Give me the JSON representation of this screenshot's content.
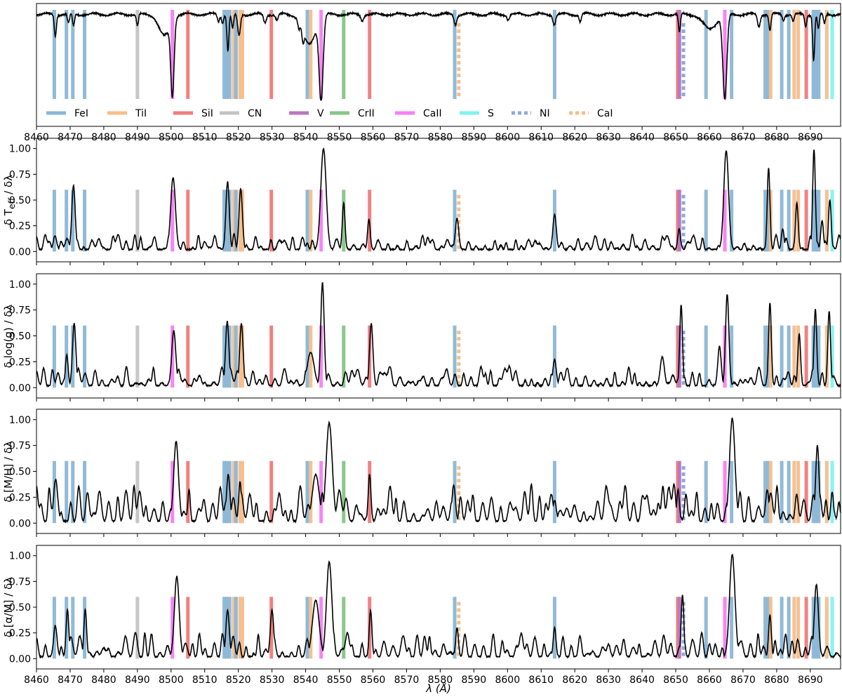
{
  "figure": {
    "xlabel": "λ (Å)",
    "x_ticks": [
      8460,
      8470,
      8480,
      8490,
      8500,
      8510,
      8520,
      8530,
      8540,
      8550,
      8560,
      8570,
      8580,
      8590,
      8600,
      8610,
      8620,
      8630,
      8640,
      8650,
      8660,
      8670,
      8680,
      8690
    ],
    "xlim": [
      8460,
      8699
    ],
    "y_ticks": [
      0.0,
      0.25,
      0.5,
      0.75,
      1.0
    ],
    "y_tick_labels": [
      "0.00",
      "0.25",
      "0.50",
      "0.75",
      "1.00"
    ],
    "legend": [
      {
        "label": "FeI",
        "color": "#8ab6d6",
        "style": "solid"
      },
      {
        "label": "TiI",
        "color": "#f6be8c",
        "style": "solid"
      },
      {
        "label": "SiI",
        "color": "#ef7b7b",
        "style": "solid"
      },
      {
        "label": "CN",
        "color": "#c4c4c4",
        "style": "solid"
      },
      {
        "label": "V",
        "color": "#b777be",
        "style": "solid"
      },
      {
        "label": "CrII",
        "color": "#85c585",
        "style": "solid"
      },
      {
        "label": "CaII",
        "color": "#f77ef7",
        "style": "solid"
      },
      {
        "label": "S",
        "color": "#7ff3f3",
        "style": "solid"
      },
      {
        "label": "NI",
        "color": "#91a6e2",
        "style": "dotted"
      },
      {
        "label": "CaI",
        "color": "#f6be8c",
        "style": "dotted"
      }
    ],
    "line_markers": [
      {
        "species": "FeI",
        "wl": 8465.3
      },
      {
        "species": "FeI",
        "wl": 8468.9
      },
      {
        "species": "FeI",
        "wl": 8470.8
      },
      {
        "species": "FeI",
        "wl": 8474.3
      },
      {
        "species": "CN",
        "wl": 8490.0
      },
      {
        "species": "CaII",
        "wl": 8500.4
      },
      {
        "species": "SiI",
        "wl": 8505.0
      },
      {
        "species": "FeI",
        "wl": 8515.8
      },
      {
        "species": "FeI",
        "wl": 8516.6
      },
      {
        "species": "FeI",
        "wl": 8517.4
      },
      {
        "species": "TiI",
        "wl": 8518.6
      },
      {
        "species": "FeI",
        "wl": 8519.3
      },
      {
        "species": "TiI",
        "wl": 8520.5
      },
      {
        "species": "TiI",
        "wl": 8521.2
      },
      {
        "species": "SiI",
        "wl": 8529.8
      },
      {
        "species": "FeI",
        "wl": 8540.5
      },
      {
        "species": "TiI",
        "wl": 8541.5
      },
      {
        "species": "CaII",
        "wl": 8544.6
      },
      {
        "species": "CrII",
        "wl": 8551.3
      },
      {
        "species": "SiI",
        "wl": 8559.0
      },
      {
        "species": "FeI",
        "wl": 8584.3
      },
      {
        "species": "FeI",
        "wl": 8614.0
      },
      {
        "species": "SiI",
        "wl": 8650.6
      },
      {
        "species": "V",
        "wl": 8651.1
      },
      {
        "species": "FeI",
        "wl": 8659.0
      },
      {
        "species": "CaII",
        "wl": 8664.6
      },
      {
        "species": "FeI",
        "wl": 8666.6
      },
      {
        "species": "FeI",
        "wl": 8676.6
      },
      {
        "species": "FeI",
        "wl": 8677.5
      },
      {
        "species": "TiI",
        "wl": 8678.2
      },
      {
        "species": "FeI",
        "wl": 8681.5
      },
      {
        "species": "FeI",
        "wl": 8683.6
      },
      {
        "species": "TiI",
        "wl": 8685.2
      },
      {
        "species": "TiI",
        "wl": 8686.4
      },
      {
        "species": "SiI",
        "wl": 8688.8
      },
      {
        "species": "FeI",
        "wl": 8690.9
      },
      {
        "species": "FeI",
        "wl": 8691.7
      },
      {
        "species": "FeI",
        "wl": 8692.5
      },
      {
        "species": "TiI",
        "wl": 8694.9
      },
      {
        "species": "S",
        "wl": 8696.5
      }
    ],
    "dotted_markers": [
      {
        "species": "CaI",
        "wl": 8585.5
      },
      {
        "species": "NI",
        "wl": 8652.3
      }
    ]
  },
  "chart_data": [
    {
      "type": "line",
      "id": "spectrum",
      "ylabel": "",
      "show_y_ticks": false,
      "ylim": [
        0.0,
        1.02
      ],
      "baseline": 0.93,
      "lines": [
        {
          "wl": 8465.6,
          "depth": 0.18,
          "width": 0.3
        },
        {
          "wl": 8469.5,
          "depth": 0.08,
          "width": 0.3
        },
        {
          "wl": 8471.0,
          "depth": 0.1,
          "width": 0.3
        },
        {
          "wl": 8490.0,
          "depth": 0.1,
          "width": 0.3
        },
        {
          "wl": 8498.0,
          "depth": 0.18,
          "width": 1.6
        },
        {
          "wl": 8500.4,
          "depth": 0.62,
          "width": 0.5
        },
        {
          "wl": 8514.1,
          "depth": 0.06,
          "width": 0.3
        },
        {
          "wl": 8515.3,
          "depth": 0.07,
          "width": 0.3
        },
        {
          "wl": 8516.9,
          "depth": 0.3,
          "width": 0.3
        },
        {
          "wl": 8518.3,
          "depth": 0.12,
          "width": 0.3
        },
        {
          "wl": 8520.2,
          "depth": 0.18,
          "width": 0.4
        },
        {
          "wl": 8527.9,
          "depth": 0.07,
          "width": 0.4
        },
        {
          "wl": 8531.5,
          "depth": 0.05,
          "width": 0.4
        },
        {
          "wl": 8538.0,
          "depth": 0.06,
          "width": 0.3
        },
        {
          "wl": 8539.2,
          "depth": 0.1,
          "width": 0.3
        },
        {
          "wl": 8541.0,
          "depth": 0.25,
          "width": 1.8
        },
        {
          "wl": 8544.6,
          "depth": 0.68,
          "width": 0.6
        },
        {
          "wl": 8556.8,
          "depth": 0.05,
          "width": 0.4
        },
        {
          "wl": 8584.5,
          "depth": 0.08,
          "width": 0.4
        },
        {
          "wl": 8600.2,
          "depth": 0.04,
          "width": 0.4
        },
        {
          "wl": 8613.9,
          "depth": 0.08,
          "width": 0.4
        },
        {
          "wl": 8621.6,
          "depth": 0.06,
          "width": 0.3
        },
        {
          "wl": 8651.1,
          "depth": 0.15,
          "width": 0.3
        },
        {
          "wl": 8660.0,
          "depth": 0.12,
          "width": 2.0
        },
        {
          "wl": 8664.6,
          "depth": 0.7,
          "width": 0.6
        },
        {
          "wl": 8674.7,
          "depth": 0.1,
          "width": 0.4
        },
        {
          "wl": 8678.0,
          "depth": 0.14,
          "width": 0.3
        },
        {
          "wl": 8682.0,
          "depth": 0.05,
          "width": 0.3
        },
        {
          "wl": 8684.9,
          "depth": 0.06,
          "width": 0.3
        },
        {
          "wl": 8688.6,
          "depth": 0.1,
          "width": 0.3
        },
        {
          "wl": 8691.0,
          "depth": 0.38,
          "width": 0.3
        },
        {
          "wl": 8692.4,
          "depth": 0.12,
          "width": 0.3
        },
        {
          "wl": 8694.2,
          "depth": 0.08,
          "width": 0.3
        }
      ]
    },
    {
      "type": "line",
      "id": "teff",
      "ylabel": "δ T<sub>eff</sub> / δλ",
      "ylim": [
        -0.1,
        1.1
      ],
      "peaks": [
        {
          "wl": 8465.5,
          "h": 0.13,
          "w": 0.5
        },
        {
          "wl": 8471.0,
          "h": 0.62,
          "w": 0.5
        },
        {
          "wl": 8500.6,
          "h": 0.7,
          "w": 0.7
        },
        {
          "wl": 8516.8,
          "h": 0.66,
          "w": 0.5
        },
        {
          "wl": 8520.7,
          "h": 0.59,
          "w": 0.5
        },
        {
          "wl": 8545.3,
          "h": 0.98,
          "w": 0.8
        },
        {
          "wl": 8551.3,
          "h": 0.45,
          "w": 0.4
        },
        {
          "wl": 8558.8,
          "h": 0.29,
          "w": 0.4
        },
        {
          "wl": 8585.0,
          "h": 0.3,
          "w": 0.5
        },
        {
          "wl": 8614.0,
          "h": 0.34,
          "w": 0.5
        },
        {
          "wl": 8651.0,
          "h": 0.2,
          "w": 0.4
        },
        {
          "wl": 8665.0,
          "h": 0.96,
          "w": 0.7
        },
        {
          "wl": 8677.6,
          "h": 0.79,
          "w": 0.4
        },
        {
          "wl": 8681.8,
          "h": 0.2,
          "w": 0.4
        },
        {
          "wl": 8686.0,
          "h": 0.45,
          "w": 0.4
        },
        {
          "wl": 8691.1,
          "h": 0.97,
          "w": 0.4
        },
        {
          "wl": 8693.5,
          "h": 0.28,
          "w": 0.4
        },
        {
          "wl": 8695.8,
          "h": 0.48,
          "w": 0.4
        }
      ],
      "background": 0.1
    },
    {
      "type": "line",
      "id": "logg",
      "ylabel": "δ log(g) / δλ",
      "ylim": [
        -0.1,
        1.1
      ],
      "peaks": [
        {
          "wl": 8469.0,
          "h": 0.3,
          "w": 0.4
        },
        {
          "wl": 8471.2,
          "h": 0.6,
          "w": 0.5
        },
        {
          "wl": 8500.8,
          "h": 0.53,
          "w": 0.6
        },
        {
          "wl": 8516.7,
          "h": 0.62,
          "w": 0.5
        },
        {
          "wl": 8520.9,
          "h": 0.6,
          "w": 0.5
        },
        {
          "wl": 8541.5,
          "h": 0.32,
          "w": 1.0
        },
        {
          "wl": 8545.0,
          "h": 0.99,
          "w": 0.5
        },
        {
          "wl": 8559.5,
          "h": 0.6,
          "w": 0.5
        },
        {
          "wl": 8614.0,
          "h": 0.25,
          "w": 0.5
        },
        {
          "wl": 8646.0,
          "h": 0.28,
          "w": 0.6
        },
        {
          "wl": 8651.6,
          "h": 0.78,
          "w": 0.4
        },
        {
          "wl": 8663.0,
          "h": 0.38,
          "w": 0.5
        },
        {
          "wl": 8665.3,
          "h": 0.88,
          "w": 0.5
        },
        {
          "wl": 8678.0,
          "h": 0.8,
          "w": 0.4
        },
        {
          "wl": 8686.7,
          "h": 0.5,
          "w": 0.4
        },
        {
          "wl": 8691.5,
          "h": 0.74,
          "w": 0.4
        },
        {
          "wl": 8695.6,
          "h": 0.72,
          "w": 0.4
        }
      ],
      "background": 0.12
    },
    {
      "type": "line",
      "id": "mh",
      "ylabel": "δ [M/H] / δλ",
      "ylim": [
        -0.1,
        1.1
      ],
      "peaks": [
        {
          "wl": 8465.7,
          "h": 0.4,
          "w": 0.6
        },
        {
          "wl": 8501.5,
          "h": 0.77,
          "w": 0.7
        },
        {
          "wl": 8517.0,
          "h": 0.45,
          "w": 0.5
        },
        {
          "wl": 8520.5,
          "h": 0.38,
          "w": 0.4
        },
        {
          "wl": 8543.0,
          "h": 0.45,
          "w": 1.0
        },
        {
          "wl": 8547.0,
          "h": 0.95,
          "w": 0.9
        },
        {
          "wl": 8559.0,
          "h": 0.45,
          "w": 0.4
        },
        {
          "wl": 8584.0,
          "h": 0.35,
          "w": 0.5
        },
        {
          "wl": 8614.0,
          "h": 0.2,
          "w": 0.5
        },
        {
          "wl": 8650.7,
          "h": 0.3,
          "w": 0.4
        },
        {
          "wl": 8666.8,
          "h": 0.99,
          "w": 0.8
        },
        {
          "wl": 8677.2,
          "h": 0.3,
          "w": 0.5
        },
        {
          "wl": 8692.1,
          "h": 0.73,
          "w": 0.5
        },
        {
          "wl": 8696.5,
          "h": 0.28,
          "w": 0.4
        }
      ],
      "background": 0.22
    },
    {
      "type": "line",
      "id": "alpha",
      "ylabel": "δ [α/M] / δλ",
      "ylim": [
        -0.1,
        1.1
      ],
      "peaks": [
        {
          "wl": 8465.6,
          "h": 0.3,
          "w": 0.5
        },
        {
          "wl": 8469.2,
          "h": 0.46,
          "w": 0.4
        },
        {
          "wl": 8474.5,
          "h": 0.46,
          "w": 0.4
        },
        {
          "wl": 8501.7,
          "h": 0.78,
          "w": 0.7
        },
        {
          "wl": 8516.8,
          "h": 0.45,
          "w": 0.5
        },
        {
          "wl": 8530.0,
          "h": 0.45,
          "w": 0.5
        },
        {
          "wl": 8543.0,
          "h": 0.55,
          "w": 1.0
        },
        {
          "wl": 8547.0,
          "h": 0.92,
          "w": 0.8
        },
        {
          "wl": 8559.3,
          "h": 0.45,
          "w": 0.4
        },
        {
          "wl": 8585.0,
          "h": 0.28,
          "w": 0.4
        },
        {
          "wl": 8614.0,
          "h": 0.28,
          "w": 0.4
        },
        {
          "wl": 8652.0,
          "h": 0.6,
          "w": 0.4
        },
        {
          "wl": 8666.8,
          "h": 0.99,
          "w": 0.8
        },
        {
          "wl": 8678.0,
          "h": 0.4,
          "w": 0.4
        },
        {
          "wl": 8691.8,
          "h": 0.7,
          "w": 0.6
        }
      ],
      "background": 0.15
    }
  ]
}
